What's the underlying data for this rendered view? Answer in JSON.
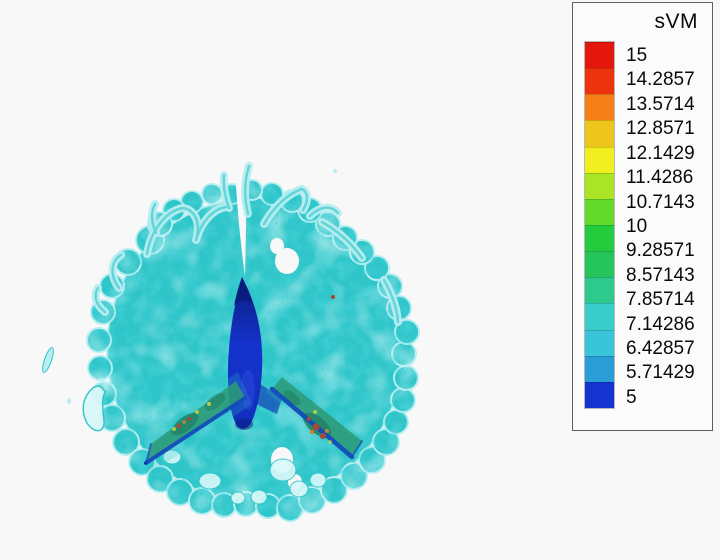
{
  "page": {
    "background": "#f8f8f8"
  },
  "legend": {
    "title": "sVM",
    "labels": [
      "15",
      "14.2857",
      "13.5714",
      "12.8571",
      "12.1429",
      "11.4286",
      "10.7143",
      "10",
      "9.28571",
      "8.57143",
      "7.85714",
      "7.14286",
      "6.42857",
      "5.71429",
      "5"
    ],
    "band_colors": [
      "#e3170b",
      "#ed330d",
      "#f57f19",
      "#eec51d",
      "#f1ef20",
      "#abe325",
      "#63d92c",
      "#24cb3c",
      "#25c55b",
      "#2ec98c",
      "#38cdc8",
      "#3ac4d8",
      "#2a9cd6",
      "#1433cf"
    ]
  },
  "figure": {
    "subject": "flapping-wing-insect-cfd-isosurface",
    "colors": {
      "vortex_base": "#2fc6c9",
      "vortex_mid": "#17aebc",
      "vortex_dark": "#0d8ca1",
      "vortex_light": "#b7eef1",
      "vortex_pale": "#d9f8f9",
      "body_dark": "#081d7c",
      "body_blue": "#1533cc",
      "body_mid": "#1130bd",
      "body_light": "#2b4ade",
      "wing_green": "#2e8e62",
      "wing_dark_green": "#1d6e4a",
      "edge_blue": "#0d2bb4",
      "spot_red": "#c8280f",
      "spot_orange": "#e07818",
      "spot_yellow": "#d8cc25"
    }
  },
  "chart_data": {
    "type": "heatmap",
    "title": "sVM",
    "field_name": "sVM",
    "range": [
      5,
      15
    ],
    "legend_levels": [
      15,
      14.2857,
      13.5714,
      12.8571,
      12.1429,
      11.4286,
      10.7143,
      10,
      9.28571,
      8.57143,
      7.85714,
      7.14286,
      6.42857,
      5.71429,
      5
    ],
    "legend_colors": [
      "#e3170b",
      "#ed330d",
      "#f57f19",
      "#eec51d",
      "#f1ef20",
      "#abe325",
      "#63d92c",
      "#24cb3c",
      "#25c55b",
      "#2ec98c",
      "#38cdc8",
      "#3ac4d8",
      "#2a9cd6",
      "#1433cf"
    ],
    "legend_position": "top-right",
    "grid": false
  }
}
